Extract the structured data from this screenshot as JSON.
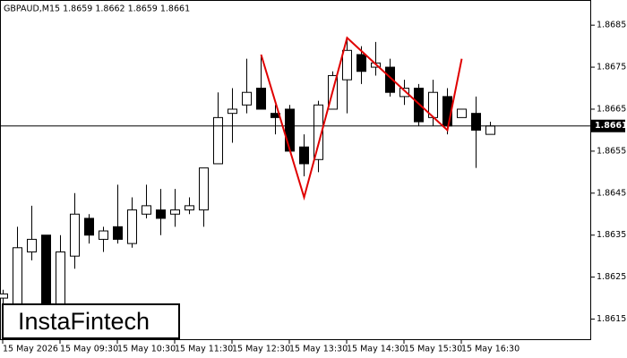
{
  "chart_data": {
    "type": "candlestick",
    "title": "GBPAUD,M15  1.8659 1.8662 1.8659 1.8661",
    "categories": [
      "15 May 2026",
      null,
      null,
      null,
      "15 May 09:30",
      null,
      null,
      null,
      "15 May 10:30",
      null,
      null,
      null,
      "15 May 11:30",
      null,
      null,
      null,
      "15 May 12:30",
      null,
      null,
      null,
      "15 May 13:30",
      null,
      null,
      null,
      "15 May 14:30",
      null,
      null,
      null,
      "15 May 15:30",
      null,
      null,
      null,
      "15 May 16:30",
      null,
      null
    ],
    "open": [
      1.862,
      1.8612,
      1.8631,
      1.8635,
      1.8612,
      1.863,
      1.8639,
      1.8634,
      1.8637,
      1.8633,
      1.864,
      1.8641,
      1.864,
      1.8641,
      1.8641,
      1.8652,
      1.8664,
      1.8666,
      1.867,
      1.8664,
      1.8665,
      1.8656,
      1.8653,
      1.8665,
      1.8672,
      1.8678,
      1.8675,
      1.8675,
      1.8668,
      1.867,
      1.8663,
      1.8668,
      1.8663,
      1.8664,
      1.8659
    ],
    "high": [
      1.8622,
      1.8637,
      1.8642,
      1.8635,
      1.8635,
      1.8645,
      1.864,
      1.8637,
      1.8647,
      1.8644,
      1.8647,
      1.8646,
      1.8646,
      1.8644,
      1.8651,
      1.8669,
      1.867,
      1.8677,
      1.8678,
      1.8666,
      1.8666,
      1.8659,
      1.8667,
      1.8674,
      1.8682,
      1.868,
      1.8681,
      1.8677,
      1.8672,
      1.8671,
      1.8672,
      1.867,
      1.8665,
      1.8668,
      1.8662
    ],
    "low": [
      1.8617,
      1.8611,
      1.8629,
      1.861,
      1.8611,
      1.8627,
      1.8633,
      1.8631,
      1.8633,
      1.8632,
      1.8639,
      1.8635,
      1.8637,
      1.864,
      1.8637,
      1.8652,
      1.8657,
      1.8664,
      1.8665,
      1.8659,
      1.8655,
      1.8649,
      1.865,
      1.8665,
      1.8664,
      1.8671,
      1.8673,
      1.8668,
      1.8666,
      1.8661,
      1.8661,
      1.8659,
      1.8663,
      1.8651,
      1.8659
    ],
    "close": [
      1.8621,
      1.8632,
      1.8634,
      1.8612,
      1.8631,
      1.864,
      1.8635,
      1.8636,
      1.8634,
      1.8641,
      1.8642,
      1.8639,
      1.8641,
      1.8642,
      1.8651,
      1.8663,
      1.8665,
      1.8669,
      1.8665,
      1.8663,
      1.8655,
      1.8652,
      1.8666,
      1.8673,
      1.8679,
      1.8674,
      1.8676,
      1.8669,
      1.867,
      1.8662,
      1.8669,
      1.8661,
      1.8665,
      1.866,
      1.8661
    ],
    "pattern": {
      "color": "#e00000",
      "x": [
        18,
        21,
        24,
        31,
        32
      ],
      "values": [
        1.8678,
        1.8644,
        1.8682,
        1.866,
        1.8677
      ]
    },
    "current_price": 1.8661,
    "ylim": [
      1.861,
      1.8691
    ],
    "yticks": [
      1.8615,
      1.8625,
      1.8635,
      1.8645,
      1.8655,
      1.8665,
      1.8675,
      1.8685
    ],
    "logo": "InstaFintech"
  }
}
